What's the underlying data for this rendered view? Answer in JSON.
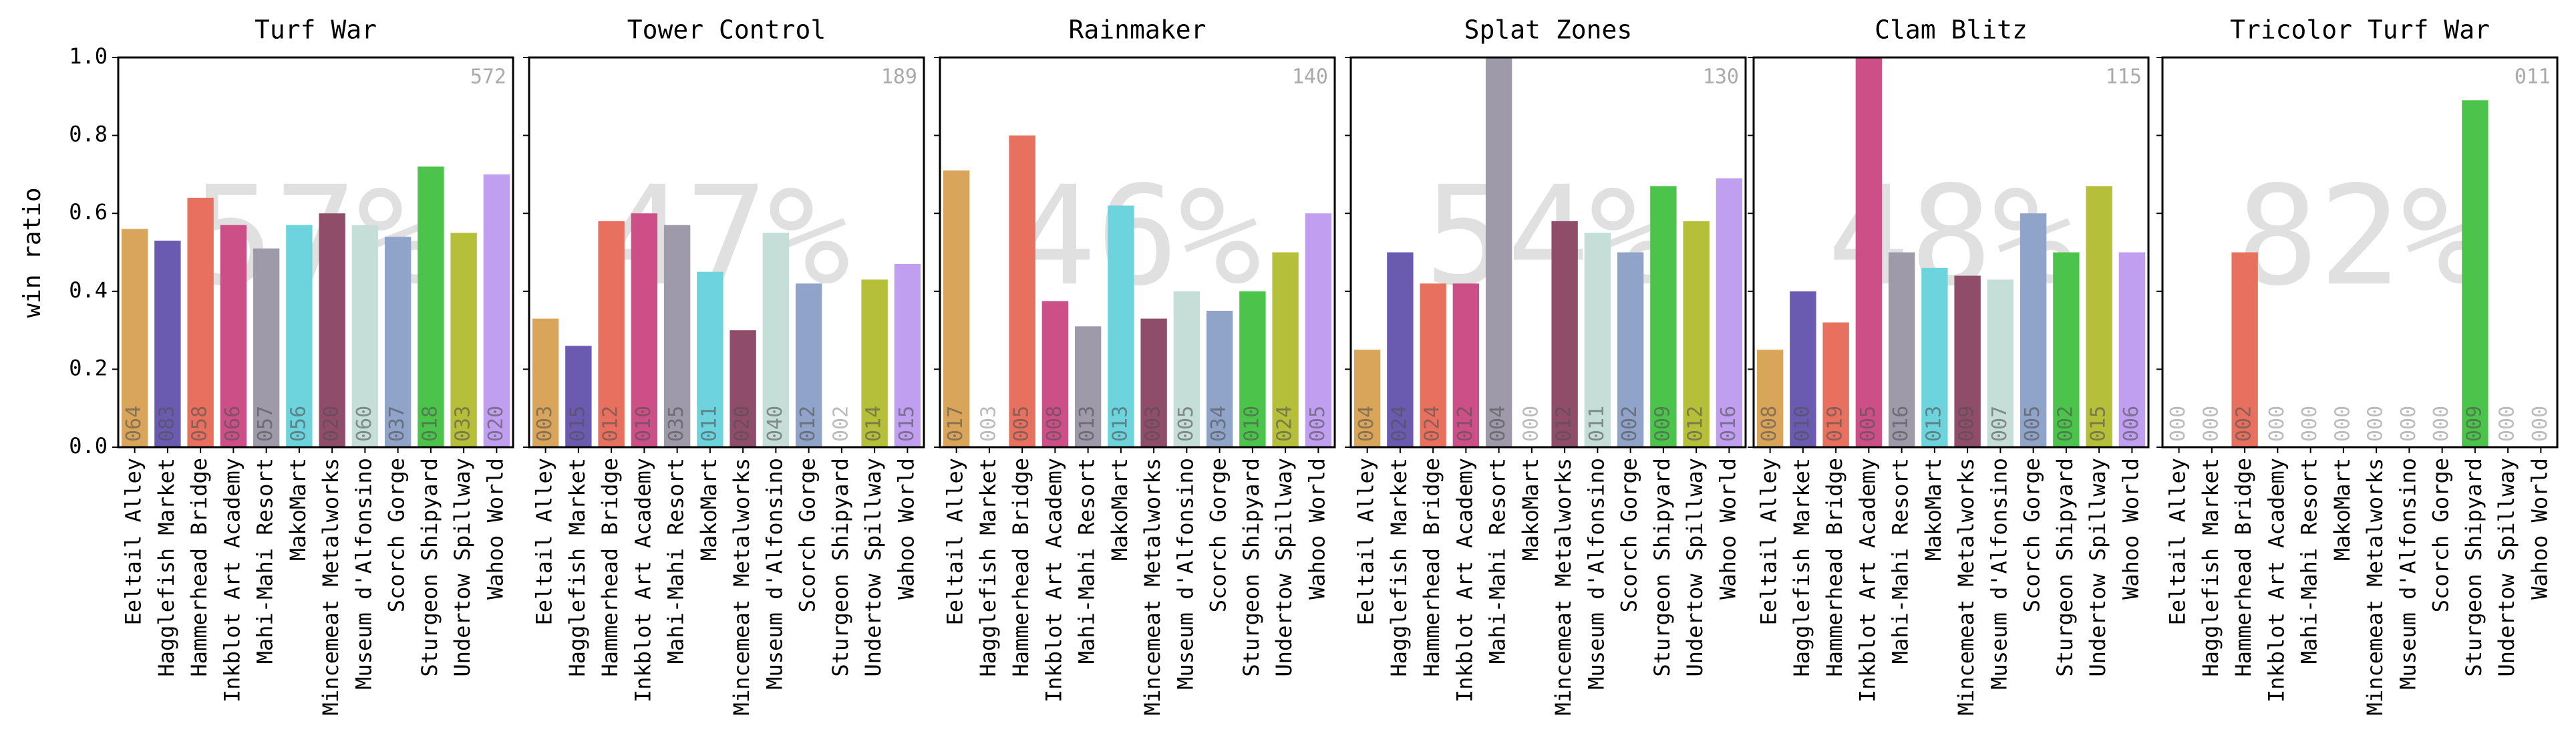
{
  "chart_data": [
    {
      "type": "bar",
      "title": "Turf War",
      "ylabel": "win ratio",
      "ylim": [
        0,
        1
      ],
      "yticks": [
        {
          "value": 0,
          "label": "0.0"
        },
        0.2,
        0.4,
        0.6,
        0.8,
        {
          "value": 1,
          "label": "1.0"
        }
      ],
      "overall": "57%",
      "total": "572",
      "categories": [
        "Eeltail Alley",
        "Hagglefish Market",
        "Hammerhead Bridge",
        "Inkblot Art Academy",
        "Mahi-Mahi Resort",
        "MakoMart",
        "Mincemeat Metalworks",
        "Museum d'Alfonsino",
        "Scorch Gorge",
        "Sturgeon Shipyard",
        "Undertow Spillway",
        "Wahoo World"
      ],
      "colors": [
        "#d9a55a",
        "#6b5bb0",
        "#e8705f",
        "#cc4f88",
        "#9e9aaa",
        "#6dd3dc",
        "#8f4d6a",
        "#c5ded8",
        "#90a3c8",
        "#4cc44c",
        "#b6bf3a",
        "#c09ef0"
      ],
      "values": [
        0.56,
        0.53,
        0.64,
        0.57,
        0.51,
        0.57,
        0.6,
        0.57,
        0.54,
        0.72,
        0.55,
        0.7
      ],
      "count_labels": [
        "064",
        "083",
        "058",
        "066",
        "057",
        "056",
        "020",
        "060",
        "037",
        "018",
        "033",
        "020"
      ]
    },
    {
      "type": "bar",
      "title": "Tower Control",
      "ylim": [
        0,
        1
      ],
      "overall": "47%",
      "total": "189",
      "categories": [
        "Eeltail Alley",
        "Hagglefish Market",
        "Hammerhead Bridge",
        "Inkblot Art Academy",
        "Mahi-Mahi Resort",
        "MakoMart",
        "Mincemeat Metalworks",
        "Museum d'Alfonsino",
        "Scorch Gorge",
        "Sturgeon Shipyard",
        "Undertow Spillway",
        "Wahoo World"
      ],
      "colors": [
        "#d9a55a",
        "#6b5bb0",
        "#e8705f",
        "#cc4f88",
        "#9e9aaa",
        "#6dd3dc",
        "#8f4d6a",
        "#c5ded8",
        "#90a3c8",
        "#4cc44c",
        "#b6bf3a",
        "#c09ef0"
      ],
      "values": [
        0.33,
        0.26,
        0.58,
        0.6,
        0.57,
        0.45,
        0.3,
        0.55,
        0.42,
        0,
        0.43,
        0.47
      ],
      "count_labels": [
        "003",
        "015",
        "012",
        "010",
        "035",
        "011",
        "020",
        "040",
        "012",
        "002",
        "014",
        "015"
      ]
    },
    {
      "type": "bar",
      "title": "Rainmaker",
      "ylim": [
        0,
        1
      ],
      "overall": "46%",
      "total": "140",
      "categories": [
        "Eeltail Alley",
        "Hagglefish Market",
        "Hammerhead Bridge",
        "Inkblot Art Academy",
        "Mahi-Mahi Resort",
        "MakoMart",
        "Mincemeat Metalworks",
        "Museum d'Alfonsino",
        "Scorch Gorge",
        "Sturgeon Shipyard",
        "Undertow Spillway",
        "Wahoo World"
      ],
      "colors": [
        "#d9a55a",
        "#6b5bb0",
        "#e8705f",
        "#cc4f88",
        "#9e9aaa",
        "#6dd3dc",
        "#8f4d6a",
        "#c5ded8",
        "#90a3c8",
        "#4cc44c",
        "#b6bf3a",
        "#c09ef0"
      ],
      "values": [
        0.71,
        0,
        0.8,
        0.375,
        0.31,
        0.62,
        0.33,
        0.4,
        0.35,
        0.4,
        0.5,
        0.6
      ],
      "count_labels": [
        "017",
        "003",
        "005",
        "008",
        "013",
        "013",
        "003",
        "005",
        "034",
        "010",
        "024",
        "005"
      ]
    },
    {
      "type": "bar",
      "title": "Splat Zones",
      "ylim": [
        0,
        1
      ],
      "overall": "54%",
      "total": "130",
      "categories": [
        "Eeltail Alley",
        "Hagglefish Market",
        "Hammerhead Bridge",
        "Inkblot Art Academy",
        "Mahi-Mahi Resort",
        "MakoMart",
        "Mincemeat Metalworks",
        "Museum d'Alfonsino",
        "Scorch Gorge",
        "Sturgeon Shipyard",
        "Undertow Spillway",
        "Wahoo World"
      ],
      "colors": [
        "#d9a55a",
        "#6b5bb0",
        "#e8705f",
        "#cc4f88",
        "#9e9aaa",
        "#6dd3dc",
        "#8f4d6a",
        "#c5ded8",
        "#90a3c8",
        "#4cc44c",
        "#b6bf3a",
        "#c09ef0"
      ],
      "values": [
        0.25,
        0.5,
        0.42,
        0.42,
        1.0,
        0,
        0.58,
        0.55,
        0.5,
        0.67,
        0.58,
        0.69
      ],
      "count_labels": [
        "004",
        "024",
        "024",
        "012",
        "004",
        "000",
        "012",
        "011",
        "002",
        "009",
        "012",
        "016"
      ]
    },
    {
      "type": "bar",
      "title": "Clam Blitz",
      "ylim": [
        0,
        1
      ],
      "overall": "48%",
      "total": "115",
      "categories": [
        "Eeltail Alley",
        "Hagglefish Market",
        "Hammerhead Bridge",
        "Inkblot Art Academy",
        "Mahi-Mahi Resort",
        "MakoMart",
        "Mincemeat Metalworks",
        "Museum d'Alfonsino",
        "Scorch Gorge",
        "Sturgeon Shipyard",
        "Undertow Spillway",
        "Wahoo World"
      ],
      "colors": [
        "#d9a55a",
        "#6b5bb0",
        "#e8705f",
        "#cc4f88",
        "#9e9aaa",
        "#6dd3dc",
        "#8f4d6a",
        "#c5ded8",
        "#90a3c8",
        "#4cc44c",
        "#b6bf3a",
        "#c09ef0"
      ],
      "values": [
        0.25,
        0.4,
        0.32,
        1.0,
        0.5,
        0.46,
        0.44,
        0.43,
        0.6,
        0.5,
        0.67,
        0.5
      ],
      "count_labels": [
        "008",
        "010",
        "019",
        "005",
        "016",
        "013",
        "009",
        "007",
        "005",
        "002",
        "015",
        "006"
      ]
    },
    {
      "type": "bar",
      "title": "Tricolor Turf War",
      "ylim": [
        0,
        1
      ],
      "overall": "82%",
      "total": "011",
      "categories": [
        "Eeltail Alley",
        "Hagglefish Market",
        "Hammerhead Bridge",
        "Inkblot Art Academy",
        "Mahi-Mahi Resort",
        "MakoMart",
        "Mincemeat Metalworks",
        "Museum d'Alfonsino",
        "Scorch Gorge",
        "Sturgeon Shipyard",
        "Undertow Spillway",
        "Wahoo World"
      ],
      "colors": [
        "#d9a55a",
        "#6b5bb0",
        "#e8705f",
        "#cc4f88",
        "#9e9aaa",
        "#6dd3dc",
        "#8f4d6a",
        "#c5ded8",
        "#90a3c8",
        "#4cc44c",
        "#b6bf3a",
        "#c09ef0"
      ],
      "values": [
        0,
        0,
        0.5,
        0,
        0,
        0,
        0,
        0,
        0,
        0.89,
        0,
        0
      ],
      "count_labels": [
        "000",
        "000",
        "002",
        "000",
        "000",
        "000",
        "000",
        "000",
        "000",
        "009",
        "000",
        "000"
      ]
    }
  ]
}
